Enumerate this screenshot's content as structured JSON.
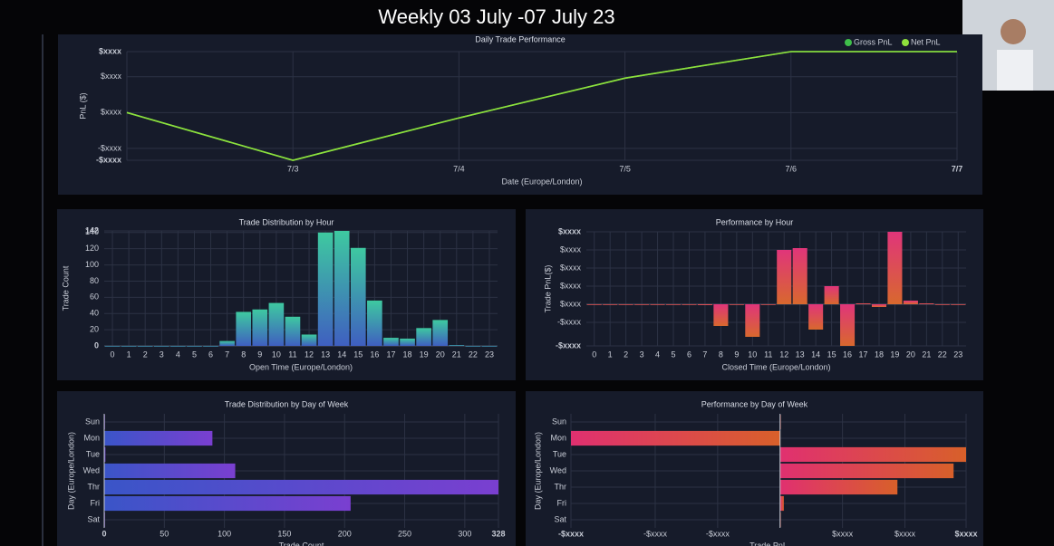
{
  "heading": "Weekly 03 July -07 July 23",
  "chart_data": [
    {
      "type": "line",
      "title": "Daily Trade Performance",
      "x_label": "Date (Europe/London)",
      "y_label": "PnL ($)",
      "categories": [
        null,
        "7/3",
        "7/4",
        "7/5",
        "7/6",
        "7/7"
      ],
      "series": [
        {
          "name": "Gross PnL",
          "color": "#3fbf4a",
          "values": [
            0,
            -1330,
            -150,
            960,
            1700,
            1700
          ]
        },
        {
          "name": "Net PnL",
          "color": "#8fe03c",
          "values": [
            0,
            -1330,
            -150,
            960,
            1700,
            1700
          ]
        }
      ],
      "ylim": [
        -1330,
        1700
      ],
      "yticks": [
        {
          "value": -1330,
          "label": "-$xxxx"
        },
        {
          "value": -1000,
          "label": "-$xxxx"
        },
        {
          "value": 0,
          "label": "$xxxx"
        },
        {
          "value": 1000,
          "label": "$xxxx"
        },
        {
          "value": 1700,
          "label": "$xxxx"
        }
      ],
      "grid": true,
      "legend": "upper right"
    },
    {
      "type": "bar",
      "title": "Trade Distribution by Hour",
      "x_label": "Open Time (Europe/London)",
      "y_label": "Trade Count",
      "categories": [
        "0",
        "1",
        "2",
        "3",
        "4",
        "5",
        "6",
        "7",
        "8",
        "9",
        "10",
        "11",
        "12",
        "13",
        "14",
        "15",
        "16",
        "17",
        "18",
        "19",
        "20",
        "21",
        "22",
        "23"
      ],
      "values": [
        0,
        0,
        0,
        0,
        0,
        0,
        0,
        6,
        42,
        45,
        53,
        36,
        14,
        140,
        142,
        121,
        56,
        10,
        9,
        22,
        32,
        1,
        0,
        0
      ],
      "colors": [
        "#3ec9a0",
        "#3f5fc0"
      ],
      "ylim": [
        0,
        142
      ],
      "yticks": [
        0,
        20,
        40,
        60,
        80,
        100,
        120,
        140,
        142
      ],
      "grid": true
    },
    {
      "type": "bar",
      "title": "Performance by Hour",
      "x_label": "Closed Time (Europe/London)",
      "y_label": "Trade PnL($)",
      "categories": [
        "0",
        "1",
        "2",
        "3",
        "4",
        "5",
        "6",
        "7",
        "8",
        "9",
        "10",
        "11",
        "12",
        "13",
        "14",
        "15",
        "16",
        "17",
        "18",
        "19",
        "20",
        "21",
        "22",
        "23"
      ],
      "values": [
        0,
        0,
        0,
        0,
        0,
        0,
        0,
        -50,
        -1200,
        0,
        -1800,
        0,
        3000,
        3100,
        -1400,
        1000,
        -2300,
        50,
        -150,
        4000,
        200,
        50,
        0,
        0
      ],
      "colors": [
        "#e0357a",
        "#d8682e"
      ],
      "ylim": [
        -2300,
        4000
      ],
      "yticks": [
        {
          "value": -2300,
          "label": "-$xxxx"
        },
        {
          "value": -1000,
          "label": "-$xxxx"
        },
        {
          "value": 0,
          "label": "$xxxx"
        },
        {
          "value": 1000,
          "label": "$xxxx"
        },
        {
          "value": 2000,
          "label": "$xxxx"
        },
        {
          "value": 3000,
          "label": "$xxxx"
        },
        {
          "value": 4000,
          "label": "$xxxx"
        }
      ],
      "grid": true
    },
    {
      "type": "barh",
      "title": "Trade Distribution by Day of Week",
      "x_label": "Trade Count",
      "y_label": "Day (Europe/London)",
      "categories": [
        "Sun",
        "Mon",
        "Tue",
        "Wed",
        "Thr",
        "Fri",
        "Sat"
      ],
      "values": [
        0,
        90,
        1,
        109,
        328,
        205,
        0
      ],
      "colors": [
        "#3a55c8",
        "#7a3fd0"
      ],
      "xlim": [
        0,
        328
      ],
      "xticks": [
        0,
        50,
        100,
        150,
        200,
        250,
        300,
        328
      ],
      "grid": true
    },
    {
      "type": "barh",
      "title": "Performance by Day of Week",
      "x_label": "Trade PnL",
      "y_label": "Day (Europe/London)",
      "categories": [
        "Sun",
        "Mon",
        "Tue",
        "Wed",
        "Thr",
        "Fri",
        "Sat"
      ],
      "values": [
        0,
        -3350,
        2980,
        2780,
        1880,
        60,
        0
      ],
      "colors": [
        "#e03070",
        "#d8602a"
      ],
      "xlim": [
        -3350,
        2980
      ],
      "xticks": [
        {
          "value": -3350,
          "label": "-$xxxx"
        },
        {
          "value": -2000,
          "label": "-$xxxx"
        },
        {
          "value": -1000,
          "label": "-$xxxx"
        },
        {
          "value": 1000,
          "label": "$xxxx"
        },
        {
          "value": 2000,
          "label": "$xxxx"
        },
        {
          "value": 2980,
          "label": "$xxxx"
        }
      ],
      "grid": true
    }
  ]
}
